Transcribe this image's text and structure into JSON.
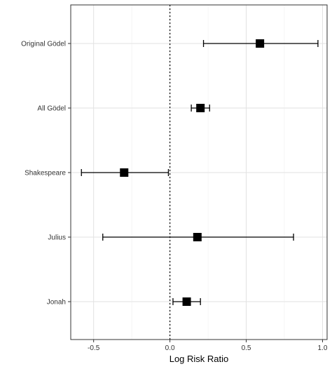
{
  "chart_data": {
    "type": "forest",
    "xlabel": "Log Risk Ratio",
    "ylabel": "",
    "xlim": [
      -0.65,
      1.03
    ],
    "x_ticks": [
      -0.5,
      0.0,
      0.5,
      1.0
    ],
    "x_tick_labels": [
      "-0.5",
      "0.0",
      "0.5",
      "1.0"
    ],
    "reference_line": 0.0,
    "grid": true,
    "categories": [
      "Original Gödel",
      "All Gödel",
      "Shakespeare",
      "Julius",
      "Jonah"
    ],
    "series": [
      {
        "estimates": [
          0.59,
          0.2,
          -0.3,
          0.18,
          0.11
        ],
        "ci_lower": [
          0.22,
          0.14,
          -0.58,
          -0.44,
          0.02
        ],
        "ci_upper": [
          0.97,
          0.26,
          -0.01,
          0.81,
          0.2
        ]
      }
    ]
  }
}
